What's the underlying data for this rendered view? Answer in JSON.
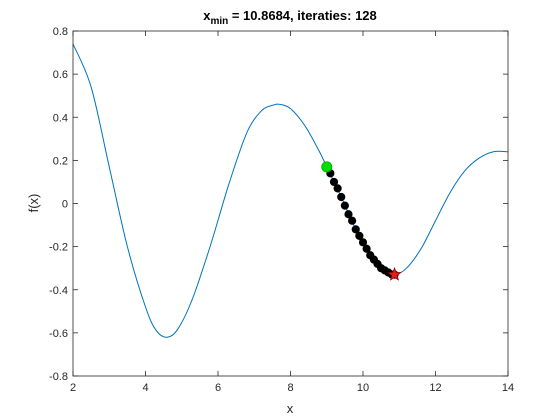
{
  "chart_data": {
    "type": "line",
    "title": {
      "main": "x",
      "subscript": "min",
      "rest": " = 10.8684, iteraties: 128"
    },
    "xlabel": "x",
    "ylabel": "f(x)",
    "xlim": [
      2,
      14
    ],
    "ylim": [
      -0.8,
      0.8
    ],
    "xticks": [
      "2",
      "4",
      "6",
      "8",
      "10",
      "12",
      "14"
    ],
    "yticks": [
      "-0.8",
      "-0.6",
      "-0.4",
      "-0.2",
      "0",
      "0.2",
      "0.4",
      "0.6",
      "0.8"
    ],
    "grid": false,
    "series": [
      {
        "style": "line",
        "color": "#0072BD",
        "x": [
          2.0,
          2.5,
          3.0,
          3.5,
          4.0,
          4.3,
          4.6,
          4.9,
          5.3,
          5.8,
          6.3,
          6.8,
          7.2,
          7.5,
          7.7,
          8.0,
          8.4,
          8.8,
          9.0,
          9.4,
          9.8,
          10.2,
          10.6,
          10.87,
          11.2,
          11.6,
          12.0,
          12.4,
          12.8,
          13.2,
          13.6,
          14.0
        ],
        "y": [
          0.74,
          0.54,
          0.17,
          -0.2,
          -0.48,
          -0.59,
          -0.62,
          -0.58,
          -0.44,
          -0.19,
          0.09,
          0.33,
          0.43,
          0.455,
          0.46,
          0.44,
          0.36,
          0.24,
          0.17,
          0.03,
          -0.12,
          -0.24,
          -0.31,
          -0.33,
          -0.3,
          -0.21,
          -0.08,
          0.05,
          0.15,
          0.21,
          0.24,
          0.24
        ]
      },
      {
        "style": "markers",
        "color": "#000000",
        "x": [
          9.0,
          9.1,
          9.2,
          9.3,
          9.4,
          9.5,
          9.6,
          9.7,
          9.8,
          9.9,
          10.0,
          10.1,
          10.2,
          10.3,
          10.4,
          10.5,
          10.6,
          10.7,
          10.8,
          10.87
        ],
        "y": [
          0.17,
          0.14,
          0.1,
          0.07,
          0.03,
          -0.01,
          -0.05,
          -0.08,
          -0.12,
          -0.15,
          -0.18,
          -0.21,
          -0.24,
          -0.26,
          -0.28,
          -0.3,
          -0.31,
          -0.32,
          -0.33,
          -0.33
        ]
      }
    ],
    "start_point": {
      "x": 9.0,
      "y": 0.17,
      "color": "#00E000"
    },
    "end_point": {
      "x": 10.8684,
      "y": -0.33,
      "color": "#E02020"
    }
  }
}
